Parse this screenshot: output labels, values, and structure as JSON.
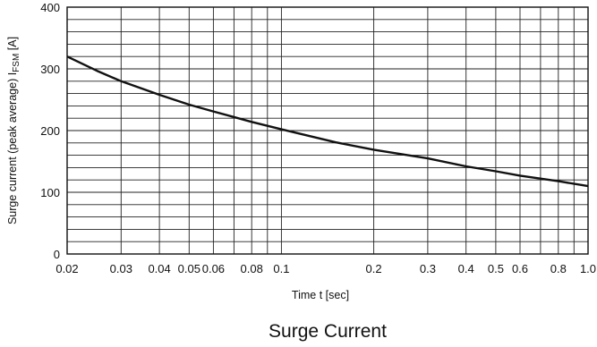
{
  "chart_data": {
    "type": "line",
    "title": "Surge Current",
    "xlabel": "Time t [sec]",
    "ylabel_main": "Surge current (peak average) I",
    "ylabel_sub": "FSM",
    "ylabel_unit": " [A]",
    "x_scale": "log",
    "xlim": [
      0.02,
      1.0
    ],
    "ylim": [
      0,
      400
    ],
    "grid": true,
    "x_ticks": [
      {
        "value": 0.02,
        "label": "0.02"
      },
      {
        "value": 0.03,
        "label": "0.03"
      },
      {
        "value": 0.04,
        "label": "0.04"
      },
      {
        "value": 0.05,
        "label": "0.05"
      },
      {
        "value": 0.06,
        "label": "0.06"
      },
      {
        "value": 0.08,
        "label": "0.08"
      },
      {
        "value": 0.1,
        "label": "0.1"
      },
      {
        "value": 0.2,
        "label": "0.2"
      },
      {
        "value": 0.3,
        "label": "0.3"
      },
      {
        "value": 0.4,
        "label": "0.4"
      },
      {
        "value": 0.5,
        "label": "0.5"
      },
      {
        "value": 0.6,
        "label": "0.6"
      },
      {
        "value": 0.8,
        "label": "0.8"
      },
      {
        "value": 1.0,
        "label": "1.0"
      }
    ],
    "y_ticks": [
      {
        "value": 0,
        "label": "0"
      },
      {
        "value": 100,
        "label": "100"
      },
      {
        "value": 200,
        "label": "200"
      },
      {
        "value": 300,
        "label": "300"
      },
      {
        "value": 400,
        "label": "400"
      }
    ],
    "x_grid": [
      0.02,
      0.03,
      0.04,
      0.05,
      0.06,
      0.07,
      0.08,
      0.09,
      0.1,
      0.2,
      0.3,
      0.4,
      0.5,
      0.6,
      0.7,
      0.8,
      0.9,
      1.0
    ],
    "y_grid_step": 20,
    "series": [
      {
        "x": [
          0.02,
          0.025,
          0.03,
          0.04,
          0.05,
          0.06,
          0.08,
          0.1,
          0.15,
          0.2,
          0.3,
          0.4,
          0.5,
          0.6,
          0.8,
          1.0
        ],
        "y": [
          320,
          297,
          280,
          258,
          242,
          231,
          214,
          202,
          181,
          169,
          155,
          142,
          134,
          127,
          118,
          110
        ]
      }
    ],
    "line_color": "#111111",
    "grid_color": "#222222"
  }
}
